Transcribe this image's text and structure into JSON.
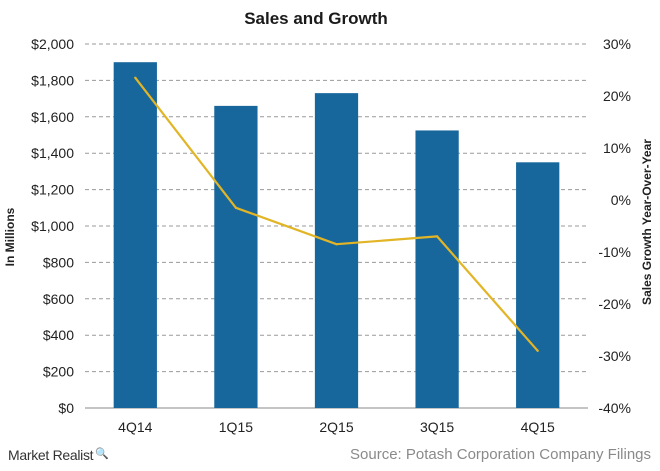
{
  "chart_data": {
    "type": "bar",
    "title": "Sales and Growth",
    "categories": [
      "4Q14",
      "1Q15",
      "2Q15",
      "3Q15",
      "4Q15"
    ],
    "series": [
      {
        "name": "Sales",
        "kind": "bar",
        "axis": "left",
        "color": "#17679c",
        "values": [
          1900,
          1660,
          1730,
          1525,
          1350
        ]
      },
      {
        "name": "Sales Growth Year-Over-Year",
        "kind": "line",
        "axis": "right",
        "color": "#e2b526",
        "values": [
          23.5,
          -1.5,
          -8.5,
          -7.0,
          -29.0
        ]
      }
    ],
    "ylabel": "In Millions",
    "y2label": "Sales Growth Year-Over-Year",
    "ylim": [
      0,
      2000
    ],
    "y2lim": [
      -40,
      30
    ],
    "yticks": [
      "$0",
      "$200",
      "$400",
      "$600",
      "$800",
      "$1,000",
      "$1,200",
      "$1,400",
      "$1,600",
      "$1,800",
      "$2,000"
    ],
    "y2ticks": [
      "-40%",
      "-30%",
      "-20%",
      "-10%",
      "0%",
      "10%",
      "20%",
      "30%"
    ],
    "grid": true
  },
  "footer": {
    "brand": "Market Realist",
    "brand_icon": "magnifier-icon",
    "source": "Source: Potash Corporation Company Filings"
  }
}
